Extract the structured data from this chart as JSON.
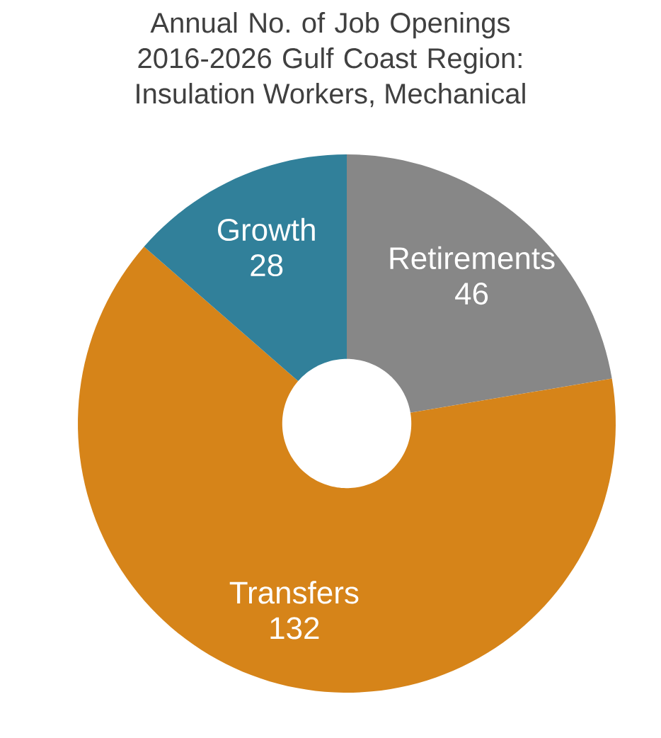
{
  "chart_data": {
    "type": "donut",
    "title": "Annual No. of Job Openings 2016-2026 Gulf Coast Region:",
    "subtitle": "Insulation Workers, Mechanical",
    "categories": [
      "Retirements",
      "Transfers",
      "Growth"
    ],
    "values": [
      46,
      132,
      28
    ],
    "colors": [
      "#878787",
      "#d68419",
      "#31809a"
    ],
    "data_labels": true
  }
}
